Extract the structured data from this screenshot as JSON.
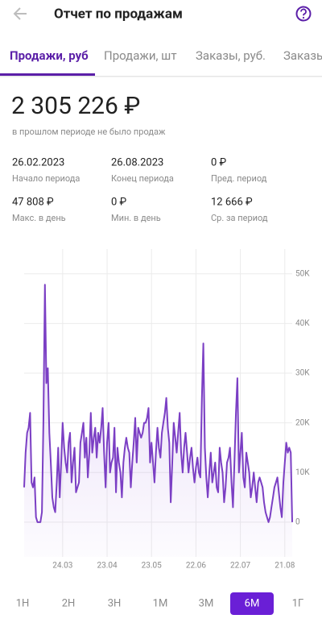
{
  "header": {
    "title": "Отчет по продажам"
  },
  "tabs": {
    "items": [
      "Продажи, руб",
      "Продажи, шт",
      "Заказы, руб.",
      "Заказы"
    ],
    "active": "Продажи, руб"
  },
  "summary": {
    "total": "2 305 226 ₽",
    "note": "в прошлом периоде не было продаж"
  },
  "stats": [
    {
      "value": "26.02.2023",
      "label": "Начало периода"
    },
    {
      "value": "26.08.2023",
      "label": "Конец периода"
    },
    {
      "value": "0 ₽",
      "label": "Пред. период"
    },
    {
      "value": "47 808 ₽",
      "label": "Макс. в день"
    },
    {
      "value": "0 ₽",
      "label": "Мин. в день"
    },
    {
      "value": "12 666 ₽",
      "label": "Ср. за период"
    }
  ],
  "chart_data": {
    "type": "line",
    "color": "#7b3fc4",
    "x": [
      "26.02",
      "27.02",
      "28.02",
      "01.03",
      "02.03",
      "03.03",
      "04.03",
      "05.03",
      "06.03",
      "07.03",
      "08.03",
      "09.03",
      "10.03",
      "11.03",
      "12.03",
      "13.03",
      "14.03",
      "15.03",
      "16.03",
      "17.03",
      "18.03",
      "19.03",
      "20.03",
      "21.03",
      "22.03",
      "23.03",
      "24.03",
      "25.03",
      "26.03",
      "27.03",
      "28.03",
      "29.03",
      "30.03",
      "31.03",
      "01.04",
      "02.04",
      "03.04",
      "04.04",
      "05.04",
      "06.04",
      "07.04",
      "08.04",
      "09.04",
      "10.04",
      "11.04",
      "12.04",
      "13.04",
      "14.04",
      "15.04",
      "16.04",
      "17.04",
      "18.04",
      "19.04",
      "20.04",
      "21.04",
      "22.04",
      "23.04",
      "24.04",
      "25.04",
      "26.04",
      "27.04",
      "28.04",
      "29.04",
      "30.04",
      "01.05",
      "02.05",
      "03.05",
      "04.05",
      "05.05",
      "06.05",
      "07.05",
      "08.05",
      "09.05",
      "10.05",
      "11.05",
      "12.05",
      "13.05",
      "14.05",
      "15.05",
      "16.05",
      "17.05",
      "18.05",
      "19.05",
      "20.05",
      "21.05",
      "22.05",
      "23.05",
      "24.05",
      "25.05",
      "26.05",
      "27.05",
      "28.05",
      "29.05",
      "30.05",
      "31.05",
      "01.06",
      "02.06",
      "03.06",
      "04.06",
      "05.06",
      "06.06",
      "07.06",
      "08.06",
      "09.06",
      "10.06",
      "11.06",
      "12.06",
      "13.06",
      "14.06",
      "15.06",
      "16.06",
      "17.06",
      "18.06",
      "19.06",
      "20.06",
      "21.06",
      "22.06",
      "23.06",
      "24.06",
      "25.06",
      "26.06",
      "27.06",
      "28.06",
      "29.06",
      "30.06",
      "01.07",
      "02.07",
      "03.07",
      "04.07",
      "05.07",
      "06.07",
      "07.07",
      "08.07",
      "09.07",
      "10.07",
      "11.07",
      "12.07",
      "13.07",
      "14.07",
      "15.07",
      "16.07",
      "17.07",
      "18.07",
      "19.07",
      "20.07",
      "21.07",
      "22.07",
      "23.07",
      "24.07",
      "25.07",
      "26.07",
      "27.07",
      "28.07",
      "29.07",
      "30.07",
      "31.07",
      "01.08",
      "02.08",
      "03.08",
      "04.08",
      "05.08",
      "06.08",
      "07.08",
      "08.08",
      "09.08",
      "10.08",
      "11.08",
      "12.08",
      "13.08",
      "14.08",
      "15.08",
      "16.08",
      "17.08",
      "18.08",
      "19.08",
      "20.08",
      "21.08",
      "22.08",
      "23.08",
      "24.08",
      "25.08",
      "26.08"
    ],
    "values": [
      7000,
      14000,
      18000,
      19000,
      22000,
      8000,
      7000,
      9000,
      1000,
      0,
      0,
      0,
      2000,
      20000,
      47808,
      28000,
      31000,
      18000,
      12000,
      5000,
      3000,
      2000,
      8000,
      15000,
      5000,
      12000,
      20000,
      15000,
      12000,
      10000,
      16000,
      18000,
      8000,
      12000,
      15000,
      6000,
      7000,
      8000,
      16000,
      18000,
      20000,
      13000,
      17000,
      9000,
      14000,
      22000,
      14000,
      17000,
      19000,
      13000,
      18000,
      16000,
      19000,
      23000,
      14000,
      7000,
      16000,
      20000,
      10000,
      12000,
      13000,
      19000,
      6000,
      15000,
      12000,
      10000,
      5000,
      12000,
      15000,
      17000,
      15000,
      14000,
      7000,
      12000,
      16000,
      21000,
      12000,
      19000,
      18000,
      17000,
      18000,
      20000,
      20000,
      21000,
      23000,
      12000,
      16000,
      12000,
      8000,
      14000,
      19000,
      15000,
      13000,
      18000,
      20000,
      22000,
      25000,
      19000,
      16000,
      4000,
      12000,
      20000,
      17000,
      14000,
      18000,
      22000,
      14000,
      10000,
      15000,
      18000,
      14000,
      10000,
      13000,
      15000,
      11000,
      8000,
      11000,
      13000,
      10000,
      9000,
      25000,
      36000,
      15000,
      9000,
      5000,
      10000,
      14000,
      8000,
      10000,
      12000,
      7000,
      6000,
      15000,
      12000,
      10000,
      4000,
      7000,
      12000,
      13000,
      15000,
      8000,
      3000,
      12000,
      22000,
      29000,
      10000,
      14000,
      18000,
      9000,
      7000,
      14000,
      12000,
      10000,
      5000,
      7000,
      10000,
      7000,
      4000,
      8000,
      9000,
      8000,
      7000,
      4000,
      2000,
      1000,
      0,
      1000,
      3000,
      5000,
      7000,
      8000,
      9000,
      6000,
      3000,
      1000,
      8000,
      12000,
      16000,
      14000,
      15000,
      14000,
      0
    ],
    "xticks": [
      "24.03",
      "23.04",
      "23.05",
      "22.06",
      "22.07",
      "21.08"
    ],
    "ylim": [
      -7000,
      55000
    ],
    "yticks": [
      0,
      {
        "value": 10000,
        "label": "10K"
      },
      {
        "value": 20000,
        "label": "20K"
      },
      {
        "value": 30000,
        "label": "30K"
      },
      {
        "value": 40000,
        "label": "40K"
      },
      {
        "value": 50000,
        "label": "50K"
      }
    ],
    "grid": true
  },
  "periods": {
    "options": [
      "1Н",
      "2Н",
      "3Н",
      "1М",
      "3М",
      "6М",
      "1Г"
    ],
    "active": "6М"
  }
}
